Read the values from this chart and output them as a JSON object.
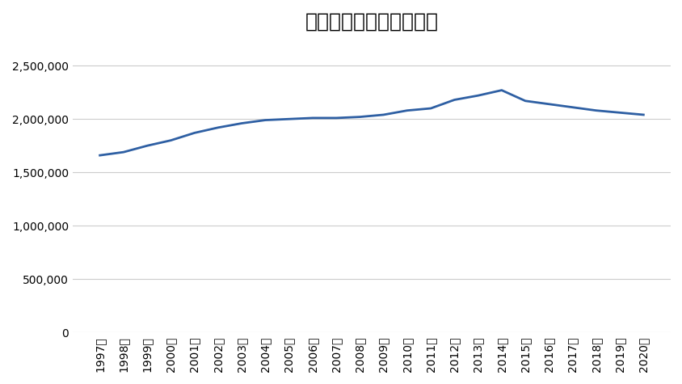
{
  "title": "保育所在籍人員数【人】",
  "years": [
    1997,
    1998,
    1999,
    2000,
    2001,
    2002,
    2003,
    2004,
    2005,
    2006,
    2007,
    2008,
    2009,
    2010,
    2011,
    2012,
    2013,
    2014,
    2015,
    2016,
    2017,
    2018,
    2019,
    2020
  ],
  "values": [
    1660000,
    1690000,
    1750000,
    1800000,
    1870000,
    1920000,
    1960000,
    1990000,
    2000000,
    2010000,
    2010000,
    2020000,
    2040000,
    2080000,
    2100000,
    2180000,
    2220000,
    2270000,
    2170000,
    2140000,
    2110000,
    2080000,
    2060000,
    2040000
  ],
  "year_suffix": "年",
  "line_color": "#2e5fa3",
  "line_width": 2.0,
  "ylim": [
    0,
    2700000
  ],
  "yticks": [
    0,
    500000,
    1000000,
    1500000,
    2000000,
    2500000
  ],
  "background_color": "#ffffff",
  "grid_color": "#cccccc",
  "title_fontsize": 18,
  "tick_fontsize": 10
}
